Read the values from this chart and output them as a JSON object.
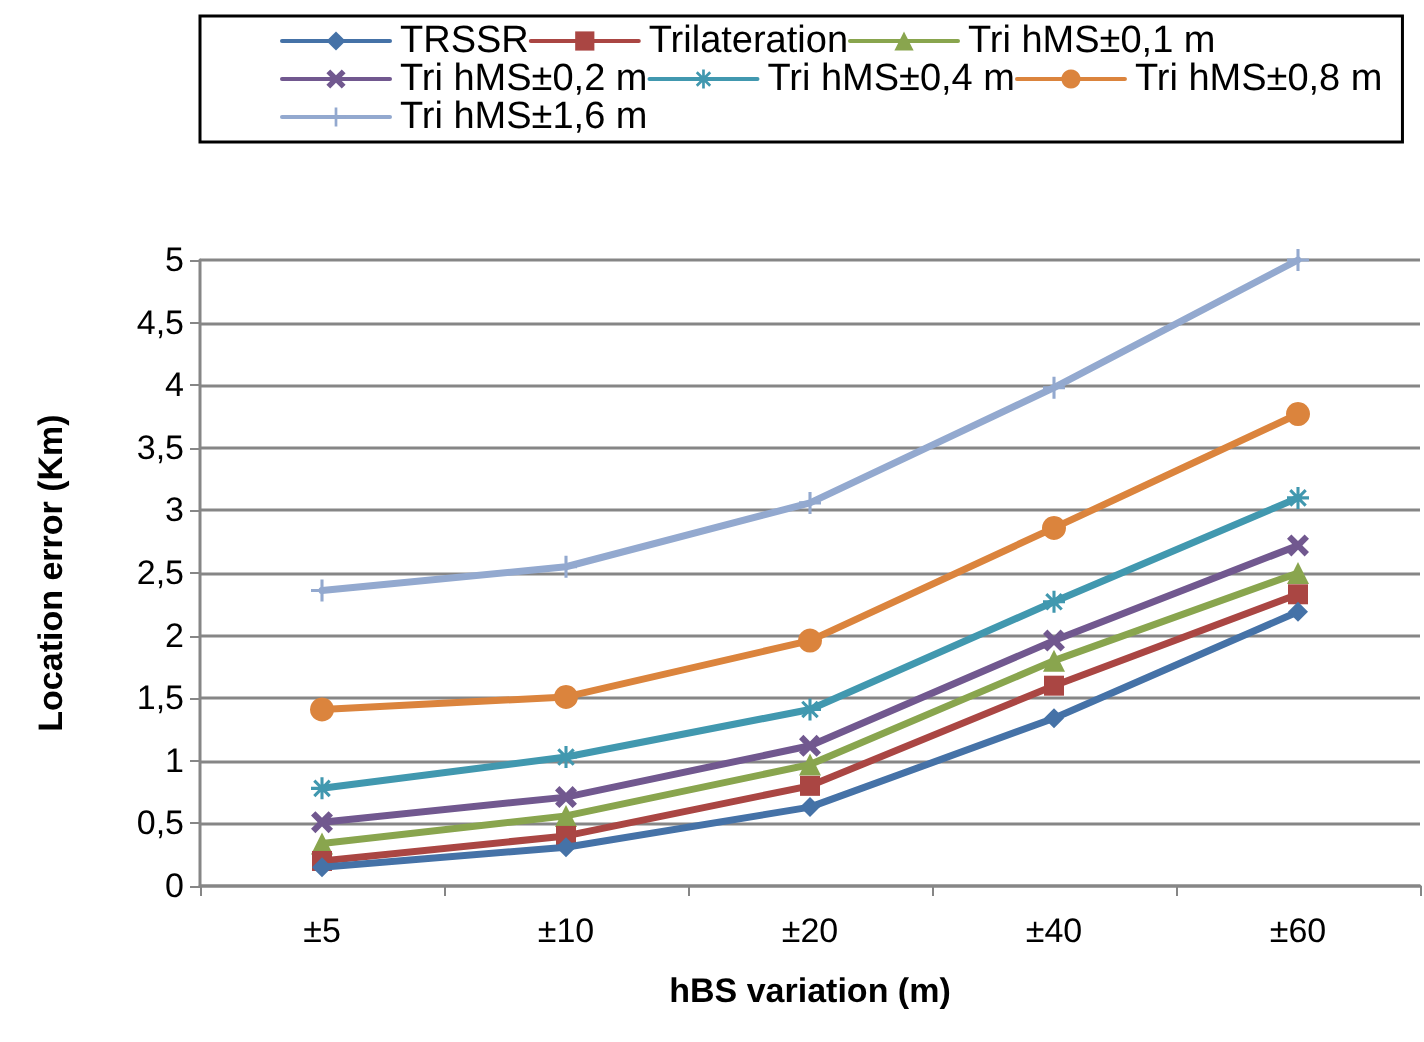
{
  "chart_data": {
    "type": "line",
    "xlabel": "hBS variation (m)",
    "ylabel": "Location error (Km)",
    "categories": [
      "±5",
      "±10",
      "±20",
      "±40",
      "±60"
    ],
    "series": [
      {
        "name": "TRSSR",
        "color": "#4572a7",
        "marker": "diamond",
        "values": [
          0.15,
          0.31,
          0.63,
          1.34,
          2.19
        ]
      },
      {
        "name": "Trilateration",
        "color": "#aa4643",
        "marker": "square",
        "values": [
          0.2,
          0.4,
          0.8,
          1.6,
          2.33
        ]
      },
      {
        "name": "Tri hMS±0,1 m",
        "color": "#89a54e",
        "marker": "triangle",
        "values": [
          0.34,
          0.56,
          0.97,
          1.8,
          2.5
        ]
      },
      {
        "name": "Tri hMS±0,2 m",
        "color": "#71588f",
        "marker": "cross",
        "values": [
          0.51,
          0.71,
          1.12,
          1.96,
          2.72
        ]
      },
      {
        "name": "Tri hMS±0,4 m",
        "color": "#4198af",
        "marker": "star",
        "values": [
          0.78,
          1.03,
          1.41,
          2.27,
          3.1
        ]
      },
      {
        "name": "Tri hMS±0,8 m",
        "color": "#db843d",
        "marker": "circle",
        "values": [
          1.41,
          1.51,
          1.96,
          2.86,
          3.77
        ]
      },
      {
        "name": "Tri hMS±1,6 m",
        "color": "#93a9cf",
        "marker": "plus",
        "values": [
          2.36,
          2.55,
          3.06,
          3.98,
          5.0
        ]
      }
    ],
    "ylim": [
      0,
      5
    ],
    "yticks": [
      0,
      {
        "value": 0.5,
        "label": "0,5"
      },
      1,
      {
        "value": 1.5,
        "label": "1,5"
      },
      2,
      {
        "value": 2.5,
        "label": "2,5"
      },
      3,
      {
        "value": 3.5,
        "label": "3,5"
      },
      4,
      {
        "value": 4.5,
        "label": "4,5"
      },
      5
    ],
    "grid": "y",
    "legend": "top",
    "line_style": "solid"
  }
}
